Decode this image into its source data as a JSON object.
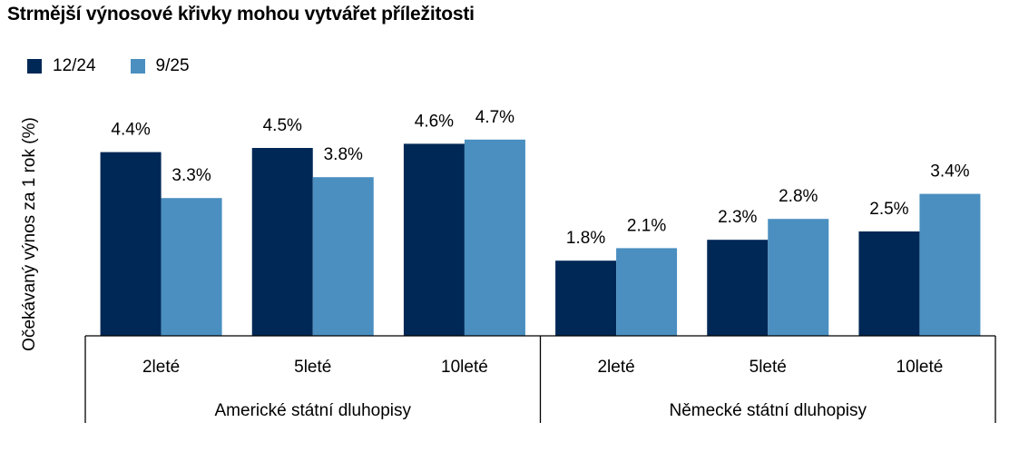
{
  "chart_data": {
    "type": "bar",
    "title": "Strmější výnosové křivky mohou vytvářet příležitosti",
    "ylabel": "Očekávaný výnos za 1 rok (%)",
    "ylim": [
      0,
      4.9
    ],
    "grid": false,
    "legend_position": "top-left",
    "categories": [
      "2leté",
      "5leté",
      "10leté",
      "2leté",
      "5leté",
      "10leté"
    ],
    "groups": [
      {
        "label": "Americké státní dluhopisy",
        "categories": [
          "2leté",
          "5leté",
          "10leté"
        ]
      },
      {
        "label": "Německé státní dluhopisy",
        "categories": [
          "2leté",
          "5leté",
          "10leté"
        ]
      }
    ],
    "series": [
      {
        "name": "12/24",
        "color": "#002856",
        "values": [
          4.4,
          4.5,
          4.6,
          1.8,
          2.3,
          2.5
        ],
        "labels": [
          "4.4%",
          "4.5%",
          "4.6%",
          "1.8%",
          "2.3%",
          "2.5%"
        ]
      },
      {
        "name": "9/25",
        "color": "#4A8FC0",
        "values": [
          3.3,
          3.8,
          4.7,
          2.1,
          2.8,
          3.4
        ],
        "labels": [
          "3.3%",
          "3.8%",
          "4.7%",
          "2.1%",
          "2.8%",
          "3.4%"
        ]
      }
    ]
  }
}
